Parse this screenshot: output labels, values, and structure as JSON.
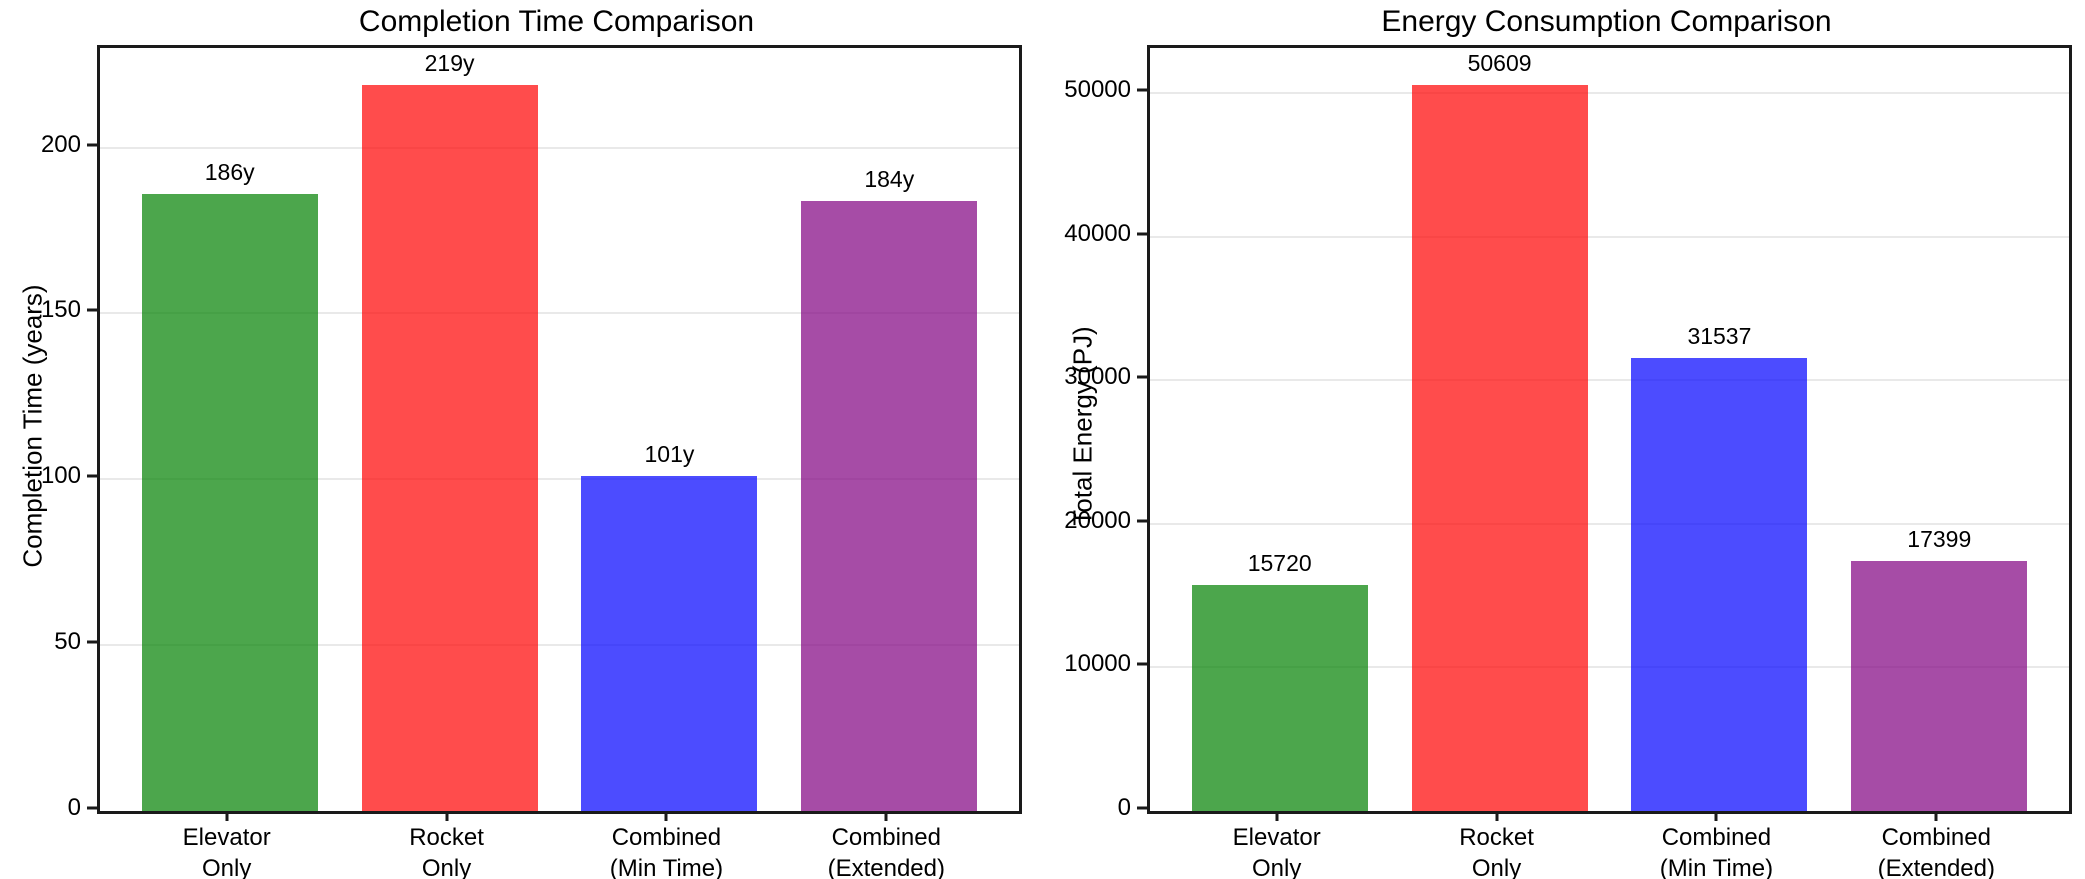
{
  "figure": {
    "background_color": "#ffffff",
    "text_color": "#000000"
  },
  "chart_data": [
    {
      "type": "bar",
      "title": "Completion Time Comparison",
      "xlabel": "",
      "ylabel": "Completion Time (years)",
      "categories": [
        "Elevator\nOnly",
        "Rocket\nOnly",
        "Combined\n(Min Time)",
        "Combined\n(Extended)"
      ],
      "values": [
        186,
        219,
        101,
        184
      ],
      "bar_labels": [
        "186y",
        "219y",
        "101y",
        "184y"
      ],
      "bar_colors": [
        "#008000",
        "#ff0000",
        "#0000ff",
        "#800080"
      ],
      "bar_alpha": 0.7,
      "ylim": [
        0,
        230
      ],
      "yticks": [
        0,
        50,
        100,
        150,
        200
      ],
      "ytick_labels": [
        "0",
        "50",
        "100",
        "150",
        "200"
      ],
      "grid": true,
      "legend_position": "none"
    },
    {
      "type": "bar",
      "title": "Energy Consumption Comparison",
      "xlabel": "",
      "ylabel": "Total Energy (PJ)",
      "categories": [
        "Elevator\nOnly",
        "Rocket\nOnly",
        "Combined\n(Min Time)",
        "Combined\n(Extended)"
      ],
      "values": [
        15720,
        50609,
        31537,
        17399
      ],
      "bar_labels": [
        "15720",
        "50609",
        "31537",
        "17399"
      ],
      "bar_colors": [
        "#008000",
        "#ff0000",
        "#0000ff",
        "#800080"
      ],
      "bar_alpha": 0.7,
      "ylim": [
        0,
        53170
      ],
      "yticks": [
        0,
        10000,
        20000,
        30000,
        40000,
        50000
      ],
      "ytick_labels": [
        "0",
        "10000",
        "20000",
        "30000",
        "40000",
        "50000"
      ],
      "grid": true,
      "legend_position": "none"
    }
  ]
}
